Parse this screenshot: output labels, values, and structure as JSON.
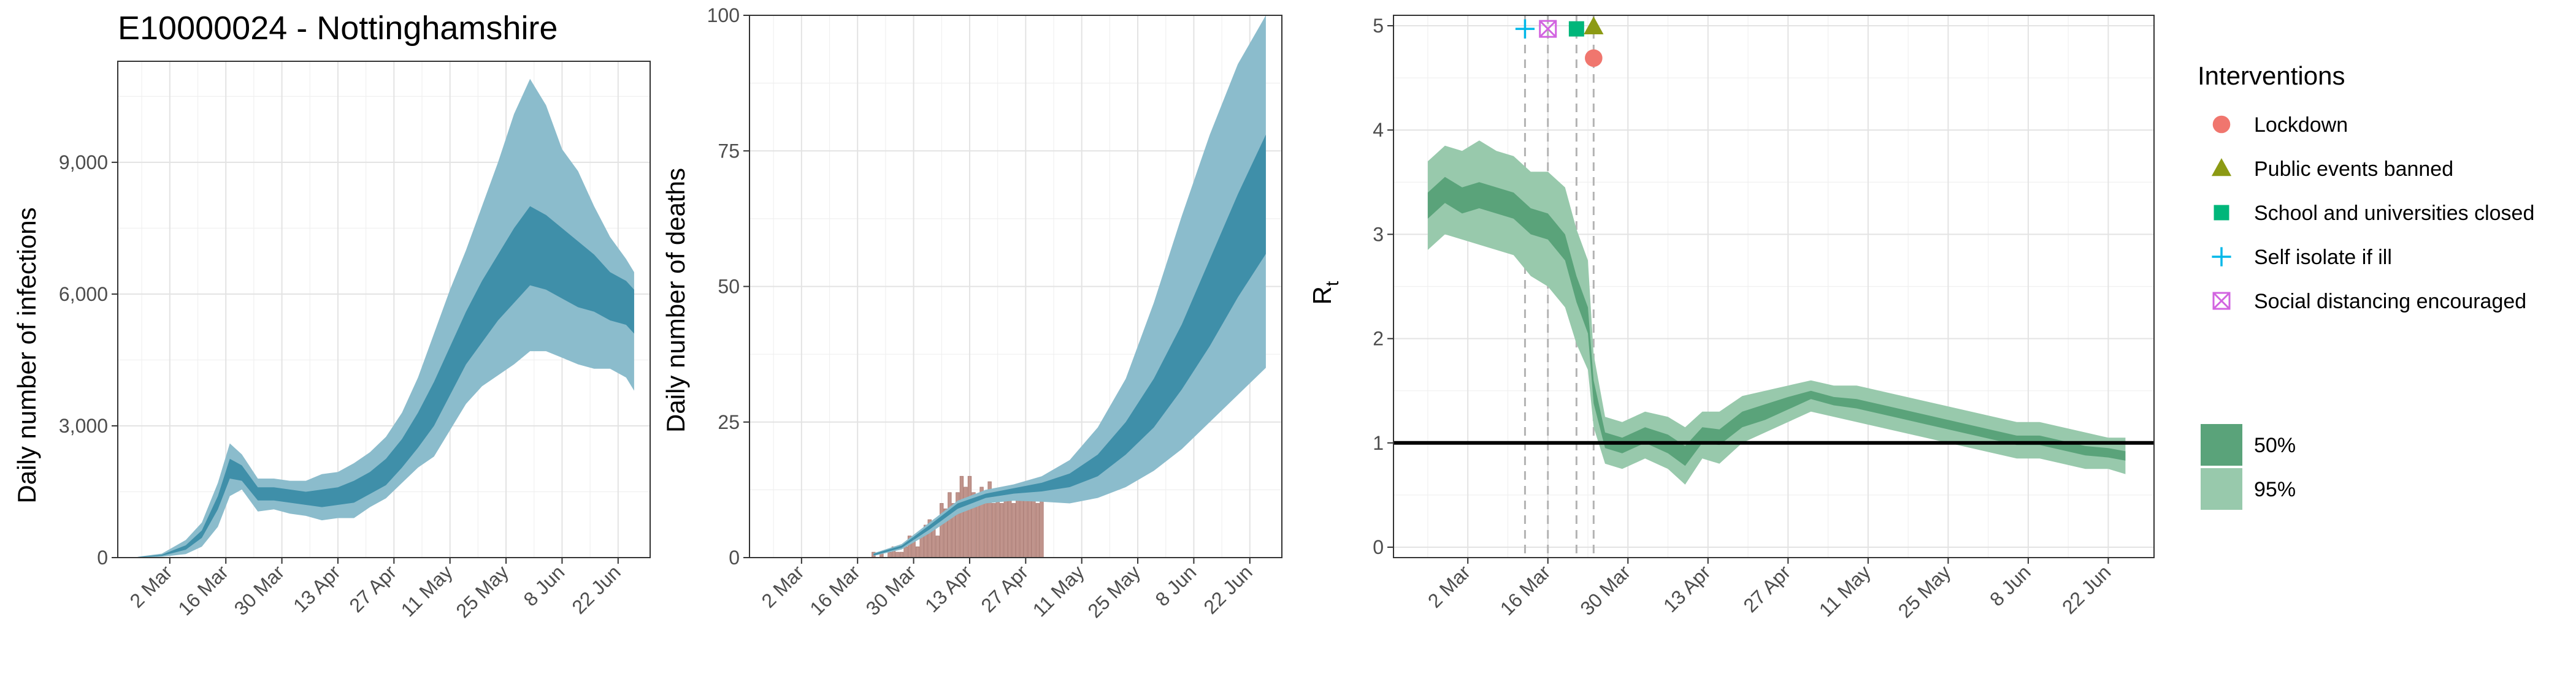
{
  "chart_data": [
    {
      "type": "area",
      "title": "E10000024 - Nottinghamshire",
      "ylabel": "Daily number of infections",
      "xlabel": "",
      "ylim": [
        0,
        11300
      ],
      "yticks": [
        0,
        3000,
        6000,
        9000
      ],
      "ytick_labels": [
        "0",
        "3,000",
        "6,000",
        "9,000"
      ],
      "x_range": [
        "2020-02-18",
        "2020-06-30"
      ],
      "xtick_dates": [
        "2020-03-02",
        "2020-03-16",
        "2020-03-30",
        "2020-04-13",
        "2020-04-27",
        "2020-05-11",
        "2020-05-25",
        "2020-06-08",
        "2020-06-22"
      ],
      "xtick_labels": [
        "2 Mar",
        "16 Mar",
        "30 Mar",
        "13 Apr",
        "27 Apr",
        "11 May",
        "25 May",
        "8 Jun",
        "22 Jun"
      ],
      "grid": true,
      "series": [
        {
          "kind": "ribbon95",
          "color": "#8bbccc",
          "dates": [
            "2020-02-23",
            "2020-02-29",
            "2020-03-06",
            "2020-03-10",
            "2020-03-14",
            "2020-03-17",
            "2020-03-20",
            "2020-03-24",
            "2020-03-28",
            "2020-04-01",
            "2020-04-05",
            "2020-04-09",
            "2020-04-13",
            "2020-04-17",
            "2020-04-21",
            "2020-04-25",
            "2020-04-29",
            "2020-05-03",
            "2020-05-07",
            "2020-05-11",
            "2020-05-15",
            "2020-05-19",
            "2020-05-23",
            "2020-05-27",
            "2020-05-31",
            "2020-06-04",
            "2020-06-08",
            "2020-06-12",
            "2020-06-16",
            "2020-06-20",
            "2020-06-24",
            "2020-06-26"
          ],
          "lower": [
            0,
            20,
            80,
            250,
            700,
            1400,
            1550,
            1050,
            1100,
            1000,
            950,
            850,
            900,
            900,
            1150,
            1350,
            1700,
            2050,
            2300,
            2900,
            3500,
            3900,
            4150,
            4400,
            4700,
            4700,
            4550,
            4400,
            4300,
            4300,
            4100,
            3800
          ],
          "upper": [
            20,
            90,
            400,
            800,
            1700,
            2600,
            2350,
            1800,
            1800,
            1750,
            1750,
            1900,
            1950,
            2150,
            2400,
            2750,
            3300,
            4100,
            5100,
            6100,
            7000,
            8000,
            9000,
            10100,
            10900,
            10300,
            9300,
            8800,
            8000,
            7300,
            6800,
            6500
          ]
        },
        {
          "kind": "ribbon50",
          "color": "#3f8fa9",
          "dates": [
            "2020-02-23",
            "2020-02-29",
            "2020-03-06",
            "2020-03-10",
            "2020-03-14",
            "2020-03-17",
            "2020-03-20",
            "2020-03-24",
            "2020-03-28",
            "2020-04-01",
            "2020-04-05",
            "2020-04-09",
            "2020-04-13",
            "2020-04-17",
            "2020-04-21",
            "2020-04-25",
            "2020-04-29",
            "2020-05-03",
            "2020-05-07",
            "2020-05-11",
            "2020-05-15",
            "2020-05-19",
            "2020-05-23",
            "2020-05-27",
            "2020-05-31",
            "2020-06-04",
            "2020-06-08",
            "2020-06-12",
            "2020-06-16",
            "2020-06-20",
            "2020-06-24",
            "2020-06-26"
          ],
          "lower": [
            5,
            40,
            180,
            450,
            1100,
            1800,
            1750,
            1300,
            1300,
            1250,
            1200,
            1150,
            1200,
            1250,
            1450,
            1650,
            2050,
            2500,
            3000,
            3700,
            4400,
            4900,
            5400,
            5800,
            6200,
            6100,
            5900,
            5700,
            5600,
            5400,
            5300,
            5100
          ],
          "upper": [
            12,
            65,
            280,
            620,
            1400,
            2250,
            2100,
            1600,
            1600,
            1550,
            1500,
            1550,
            1600,
            1750,
            1950,
            2250,
            2700,
            3300,
            4000,
            4800,
            5600,
            6300,
            6900,
            7500,
            8000,
            7800,
            7500,
            7200,
            6900,
            6500,
            6300,
            6100
          ]
        }
      ]
    },
    {
      "type": "bar",
      "title": "",
      "ylabel": "Daily number of deaths",
      "xlabel": "",
      "ylim": [
        0,
        100
      ],
      "yticks": [
        0,
        25,
        50,
        75,
        100
      ],
      "ytick_labels": [
        "0",
        "25",
        "50",
        "75",
        "100"
      ],
      "x_range": [
        "2020-02-18",
        "2020-06-30"
      ],
      "xtick_dates": [
        "2020-03-02",
        "2020-03-16",
        "2020-03-30",
        "2020-04-13",
        "2020-04-27",
        "2020-05-11",
        "2020-05-25",
        "2020-06-08",
        "2020-06-22"
      ],
      "xtick_labels": [
        "2 Mar",
        "16 Mar",
        "30 Mar",
        "13 Apr",
        "27 Apr",
        "11 May",
        "25 May",
        "8 Jun",
        "22 Jun"
      ],
      "grid": true,
      "bars": {
        "color": "#c0948c",
        "dates": [
          "2020-03-20",
          "2020-03-21",
          "2020-03-22",
          "2020-03-23",
          "2020-03-24",
          "2020-03-25",
          "2020-03-26",
          "2020-03-27",
          "2020-03-28",
          "2020-03-29",
          "2020-03-30",
          "2020-03-31",
          "2020-04-01",
          "2020-04-02",
          "2020-04-03",
          "2020-04-04",
          "2020-04-05",
          "2020-04-06",
          "2020-04-07",
          "2020-04-08",
          "2020-04-09",
          "2020-04-10",
          "2020-04-11",
          "2020-04-12",
          "2020-04-13",
          "2020-04-14",
          "2020-04-15",
          "2020-04-16",
          "2020-04-17",
          "2020-04-18",
          "2020-04-19",
          "2020-04-20",
          "2020-04-21",
          "2020-04-22",
          "2020-04-23",
          "2020-04-24",
          "2020-04-25",
          "2020-04-26",
          "2020-04-27",
          "2020-04-28",
          "2020-04-29",
          "2020-04-30",
          "2020-05-01"
        ],
        "values": [
          1,
          0,
          1,
          0,
          1,
          2,
          1,
          1,
          2,
          4,
          3,
          2,
          5,
          6,
          7,
          6,
          4,
          10,
          9,
          12,
          10,
          12,
          15,
          13,
          15,
          12,
          11,
          13,
          12,
          14,
          10,
          11,
          10,
          11,
          11,
          10,
          12,
          11,
          11,
          12,
          11,
          10,
          11
        ]
      },
      "series": [
        {
          "kind": "ribbon95",
          "color": "#8bbccc",
          "dates": [
            "2020-03-20",
            "2020-03-27",
            "2020-04-03",
            "2020-04-10",
            "2020-04-17",
            "2020-04-24",
            "2020-05-01",
            "2020-05-08",
            "2020-05-15",
            "2020-05-22",
            "2020-05-29",
            "2020-06-05",
            "2020-06-12",
            "2020-06-19",
            "2020-06-26"
          ],
          "lower": [
            0.3,
            1.5,
            4.5,
            8,
            10,
            10.5,
            10.3,
            10,
            11,
            13,
            16,
            20,
            25,
            30,
            35
          ],
          "upper": [
            0.8,
            2.5,
            6.5,
            10.5,
            12.5,
            13.5,
            15,
            18,
            24,
            33,
            47,
            63,
            78,
            91,
            100
          ]
        },
        {
          "kind": "ribbon50",
          "color": "#3f8fa9",
          "dates": [
            "2020-03-20",
            "2020-03-27",
            "2020-04-03",
            "2020-04-10",
            "2020-04-17",
            "2020-04-24",
            "2020-05-01",
            "2020-05-08",
            "2020-05-15",
            "2020-05-22",
            "2020-05-29",
            "2020-06-05",
            "2020-06-12",
            "2020-06-19",
            "2020-06-26"
          ],
          "lower": [
            0.4,
            1.8,
            5.2,
            9,
            11,
            11.8,
            12.2,
            13,
            15,
            19,
            24,
            31,
            39,
            48,
            56
          ],
          "upper": [
            0.7,
            2.2,
            6,
            10,
            11.8,
            12.8,
            13.8,
            15.5,
            19,
            25,
            33,
            43,
            55,
            67,
            78
          ]
        }
      ]
    },
    {
      "type": "line",
      "title": "",
      "ylabel": "R",
      "ylabel_subscript": "t",
      "xlabel": "",
      "ylim": [
        -0.1,
        5.1
      ],
      "yticks": [
        0,
        1,
        2,
        3,
        4,
        5
      ],
      "ytick_labels": [
        "0",
        "1",
        "2",
        "3",
        "4",
        "5"
      ],
      "x_range": [
        "2020-02-18",
        "2020-06-30"
      ],
      "xtick_dates": [
        "2020-03-02",
        "2020-03-16",
        "2020-03-30",
        "2020-04-13",
        "2020-04-27",
        "2020-05-11",
        "2020-05-25",
        "2020-06-08",
        "2020-06-22"
      ],
      "xtick_labels": [
        "2 Mar",
        "16 Mar",
        "30 Mar",
        "13 Apr",
        "27 Apr",
        "11 May",
        "25 May",
        "8 Jun",
        "22 Jun"
      ],
      "grid": true,
      "reference_line": 1,
      "intervention_dates": [
        "2020-03-12",
        "2020-03-16",
        "2020-03-21",
        "2020-03-24"
      ],
      "series": [
        {
          "name": "95%",
          "color": "#98c9ac",
          "dates": [
            "2020-02-24",
            "2020-02-27",
            "2020-03-01",
            "2020-03-04",
            "2020-03-07",
            "2020-03-10",
            "2020-03-13",
            "2020-03-16",
            "2020-03-19",
            "2020-03-21",
            "2020-03-23",
            "2020-03-24",
            "2020-03-26",
            "2020-03-29",
            "2020-04-02",
            "2020-04-06",
            "2020-04-09",
            "2020-04-12",
            "2020-04-15",
            "2020-04-19",
            "2020-04-23",
            "2020-04-27",
            "2020-05-01",
            "2020-05-05",
            "2020-05-09",
            "2020-05-13",
            "2020-05-17",
            "2020-05-21",
            "2020-05-25",
            "2020-05-29",
            "2020-06-02",
            "2020-06-06",
            "2020-06-10",
            "2020-06-14",
            "2020-06-18",
            "2020-06-22",
            "2020-06-25"
          ],
          "lower": [
            2.85,
            3.0,
            2.95,
            2.9,
            2.85,
            2.8,
            2.6,
            2.5,
            2.3,
            1.95,
            1.7,
            1.15,
            0.8,
            0.75,
            0.85,
            0.75,
            0.6,
            0.85,
            0.8,
            1.0,
            1.1,
            1.2,
            1.3,
            1.25,
            1.2,
            1.15,
            1.1,
            1.05,
            1.0,
            0.95,
            0.9,
            0.85,
            0.85,
            0.8,
            0.75,
            0.75,
            0.7
          ],
          "upper": [
            3.7,
            3.85,
            3.8,
            3.9,
            3.8,
            3.75,
            3.6,
            3.6,
            3.45,
            3.05,
            2.75,
            1.85,
            1.25,
            1.2,
            1.3,
            1.25,
            1.15,
            1.3,
            1.3,
            1.45,
            1.5,
            1.55,
            1.6,
            1.55,
            1.55,
            1.5,
            1.45,
            1.4,
            1.35,
            1.3,
            1.25,
            1.2,
            1.2,
            1.15,
            1.1,
            1.05,
            1.05
          ]
        },
        {
          "name": "50%",
          "color": "#5aa37a",
          "dates": [
            "2020-02-24",
            "2020-02-27",
            "2020-03-01",
            "2020-03-04",
            "2020-03-07",
            "2020-03-10",
            "2020-03-13",
            "2020-03-16",
            "2020-03-19",
            "2020-03-21",
            "2020-03-23",
            "2020-03-24",
            "2020-03-26",
            "2020-03-29",
            "2020-04-02",
            "2020-04-06",
            "2020-04-09",
            "2020-04-12",
            "2020-04-15",
            "2020-04-19",
            "2020-04-23",
            "2020-04-27",
            "2020-05-01",
            "2020-05-05",
            "2020-05-09",
            "2020-05-13",
            "2020-05-17",
            "2020-05-21",
            "2020-05-25",
            "2020-05-29",
            "2020-06-02",
            "2020-06-06",
            "2020-06-10",
            "2020-06-14",
            "2020-06-18",
            "2020-06-22",
            "2020-06-25"
          ],
          "lower": [
            3.15,
            3.3,
            3.2,
            3.25,
            3.2,
            3.15,
            3.0,
            2.95,
            2.75,
            2.35,
            2.05,
            1.38,
            0.95,
            0.9,
            1.0,
            0.9,
            0.78,
            1.0,
            0.98,
            1.15,
            1.22,
            1.32,
            1.42,
            1.36,
            1.33,
            1.28,
            1.23,
            1.18,
            1.13,
            1.08,
            1.03,
            0.98,
            0.98,
            0.93,
            0.88,
            0.86,
            0.83
          ],
          "upper": [
            3.4,
            3.55,
            3.45,
            3.5,
            3.45,
            3.4,
            3.25,
            3.2,
            3.0,
            2.6,
            2.3,
            1.6,
            1.1,
            1.05,
            1.15,
            1.08,
            0.97,
            1.15,
            1.13,
            1.3,
            1.37,
            1.44,
            1.5,
            1.44,
            1.42,
            1.37,
            1.32,
            1.27,
            1.22,
            1.17,
            1.12,
            1.07,
            1.07,
            1.02,
            0.97,
            0.95,
            0.92
          ]
        }
      ],
      "markers": [
        {
          "label": "Self isolate if ill",
          "date": "2020-03-12",
          "value": 4.97,
          "shape": "plus",
          "color": "#00b7e8"
        },
        {
          "label": "Social distancing encouraged",
          "date": "2020-03-16",
          "value": 4.97,
          "shape": "boxcross",
          "color": "#d264e0"
        },
        {
          "label": "School and universities closed",
          "date": "2020-03-21",
          "value": 4.97,
          "shape": "square",
          "color": "#00b67a"
        },
        {
          "label": "Public events banned",
          "date": "2020-03-24",
          "value": 4.99,
          "shape": "triangle",
          "color": "#8c9a14"
        },
        {
          "label": "Lockdown",
          "date": "2020-03-24",
          "value": 4.69,
          "shape": "circle",
          "color": "#f0766e"
        }
      ]
    }
  ],
  "legend": {
    "title": "Interventions",
    "items": [
      {
        "label": "Lockdown",
        "shape": "circle",
        "color": "#f0766e"
      },
      {
        "label": "Public events banned",
        "shape": "triangle",
        "color": "#8c9a14"
      },
      {
        "label": "School and universities closed",
        "shape": "square",
        "color": "#00b67a"
      },
      {
        "label": "Self isolate if ill",
        "shape": "plus",
        "color": "#00b7e8"
      },
      {
        "label": "Social distancing encouraged",
        "shape": "boxcross",
        "color": "#d264e0"
      }
    ],
    "bands": [
      {
        "label": "50%",
        "color": "#5aa37a"
      },
      {
        "label": "95%",
        "color": "#98c9ac"
      }
    ]
  }
}
